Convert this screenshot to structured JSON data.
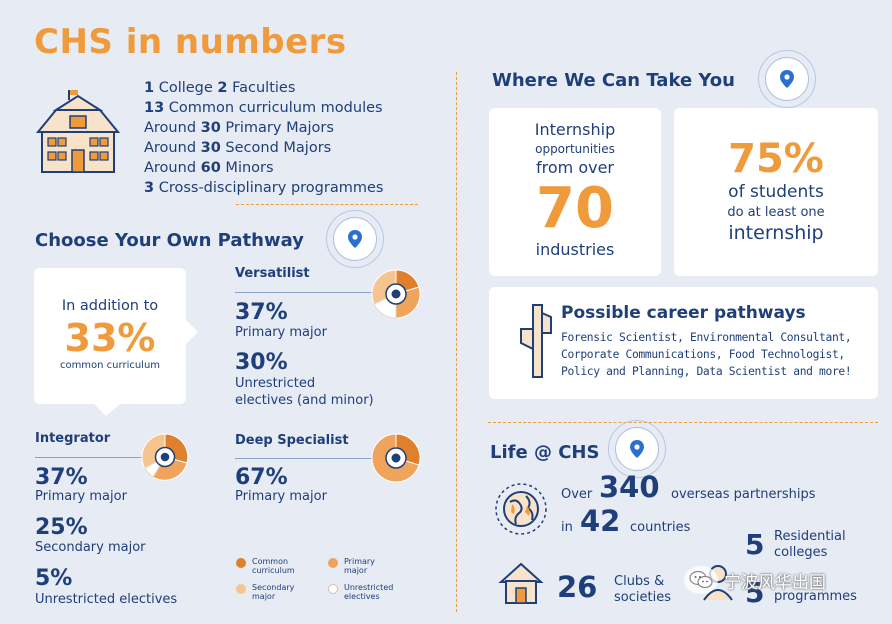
{
  "header": {
    "title": "CHS in numbers"
  },
  "stats": [
    {
      "num": "1",
      "text": " College ",
      "num2": "2",
      "text2": " Faculties"
    },
    {
      "num": "13",
      "text": " Common curriculum modules"
    },
    {
      "pre": "Around ",
      "num": "30",
      "text": " Primary Majors"
    },
    {
      "pre": "Around ",
      "num": "30",
      "text": " Second Majors"
    },
    {
      "pre": "Around ",
      "num": "60",
      "text": " Minors"
    },
    {
      "num": "3",
      "text": " Cross-disciplinary programmes"
    }
  ],
  "pathway": {
    "heading": "Choose Your Own Pathway",
    "bubble": {
      "line1": "In addition to",
      "value": "33%",
      "line2": "common curriculum"
    },
    "versatilist": {
      "label": "Versatilist",
      "a_value": "37%",
      "a_text": "Primary major",
      "b_value": "30%",
      "b_text1": "Unrestricted",
      "b_text2": "electives (and minor)"
    },
    "integrator": {
      "label": "Integrator",
      "a_value": "37%",
      "a_text": "Primary major",
      "b_value": "25%",
      "b_text": "Secondary major",
      "c_value": "5%",
      "c_text": "Unrestricted electives"
    },
    "deep": {
      "label": "Deep Specialist",
      "a_value": "67%",
      "a_text": "Primary major"
    },
    "legend": [
      {
        "label1": "Common",
        "label2": "curriculum",
        "color": "#e07f2c"
      },
      {
        "label1": "Primary",
        "label2": "major",
        "color": "#f0a35a"
      },
      {
        "label1": "Secondary",
        "label2": "major",
        "color": "#f6c48f"
      },
      {
        "label1": "Unrestricted",
        "label2": "electives",
        "color": "#ffffff"
      }
    ]
  },
  "take": {
    "heading": "Where We Can Take You",
    "card1": {
      "l1": "Internship",
      "l2": "opportunities",
      "l3": "from over",
      "value": "70",
      "l4": "industries"
    },
    "card2": {
      "value": "75%",
      "l1": "of students",
      "l2": "do at least one",
      "l3": "internship"
    },
    "career": {
      "heading": "Possible career pathways",
      "line1": "Forensic Scientist, Environmental Consultant,",
      "line2": "Corporate Communications, Food Technologist,",
      "line3": "Policy and Planning, Data Scientist and more!"
    }
  },
  "life": {
    "heading": "Life @ CHS",
    "over": "Over",
    "partners_value": "340",
    "partners_text": "overseas partnerships",
    "in": "in",
    "countries_value": "42",
    "countries_text": "countries",
    "res_value": "5",
    "res_text1": "Residential",
    "res_text2": "colleges",
    "clubs_value": "26",
    "clubs_text1": "Clubs &",
    "clubs_text2": "societies",
    "prog_value": "5",
    "prog_text": "programmes"
  },
  "watermark": {
    "text": "宁波风华出国"
  },
  "colors": {
    "navy": "#1f3f7a",
    "orange": "#ef9a3b",
    "background": "#e7ebf4"
  }
}
